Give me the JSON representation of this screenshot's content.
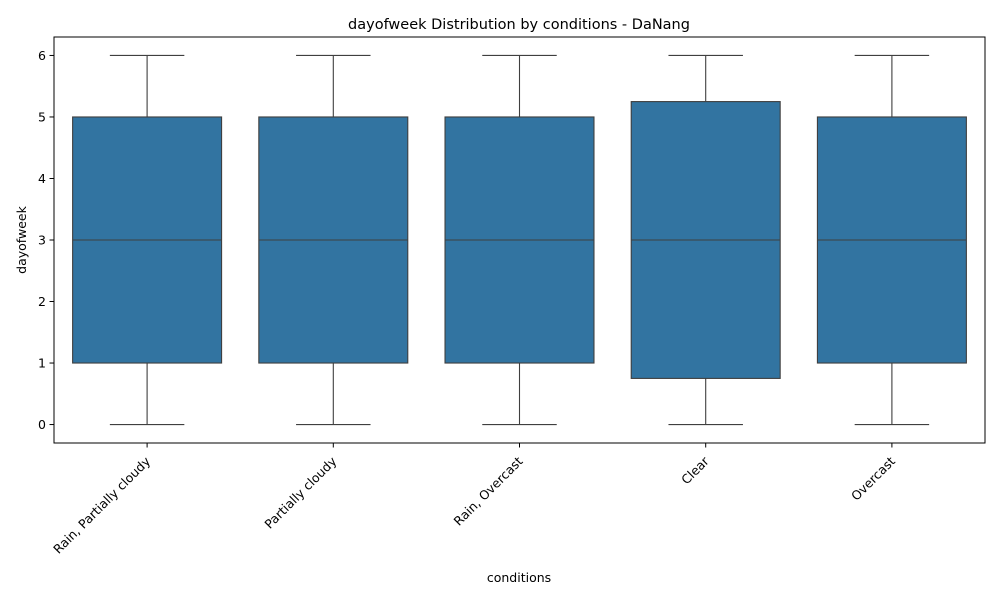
{
  "chart_data": {
    "type": "box",
    "title": "dayofweek Distribution by conditions - DaNang",
    "xlabel": "conditions",
    "ylabel": "dayofweek",
    "ylim": [
      -0.3,
      6.3
    ],
    "yticks": [
      0,
      1,
      2,
      3,
      4,
      5,
      6
    ],
    "grid": false,
    "categories": [
      "Rain, Partially cloudy",
      "Partially cloudy",
      "Rain, Overcast",
      "Clear",
      "Overcast"
    ],
    "boxes": [
      {
        "category": "Rain, Partially cloudy",
        "min": 0,
        "q1": 1,
        "median": 3,
        "q3": 5,
        "max": 6
      },
      {
        "category": "Partially cloudy",
        "min": 0,
        "q1": 1,
        "median": 3,
        "q3": 5,
        "max": 6
      },
      {
        "category": "Rain, Overcast",
        "min": 0,
        "q1": 1,
        "median": 3,
        "q3": 5,
        "max": 6
      },
      {
        "category": "Clear",
        "min": 0,
        "q1": 0.75,
        "median": 3,
        "q3": 5.25,
        "max": 6
      },
      {
        "category": "Overcast",
        "min": 0,
        "q1": 1,
        "median": 3,
        "q3": 5,
        "max": 6
      }
    ],
    "box_color": "#3274a1",
    "line_color": "#3f3f3f"
  }
}
